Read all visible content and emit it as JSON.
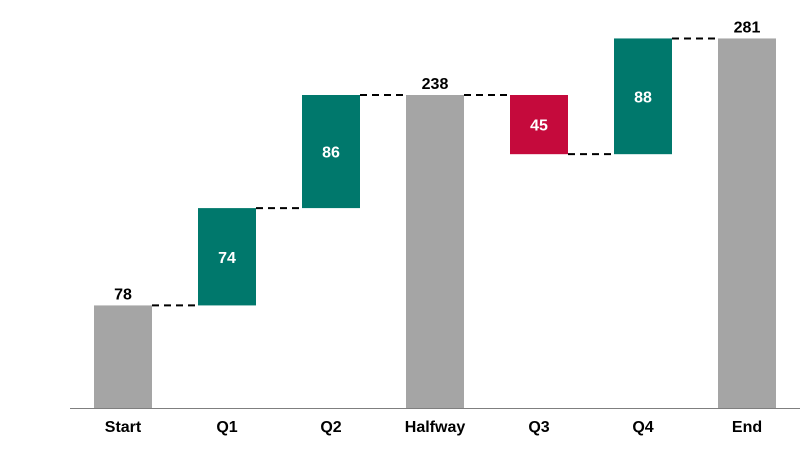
{
  "chart_data": {
    "type": "waterfall",
    "title": "",
    "xlabel": "",
    "ylabel": "",
    "ylim": [
      0,
      281
    ],
    "grid": false,
    "categories": [
      "Start",
      "Q1",
      "Q2",
      "Halfway",
      "Q3",
      "Q4",
      "End"
    ],
    "kinds": [
      "total",
      "increase",
      "increase",
      "total",
      "decrease",
      "increase",
      "total"
    ],
    "values": [
      78,
      74,
      86,
      238,
      45,
      88,
      281
    ],
    "labels": [
      "78",
      "74",
      "86",
      "238",
      "45",
      "88",
      "281"
    ],
    "colors": {
      "total": "#a5a5a5",
      "increase": "#00786c",
      "decrease": "#c50a3c",
      "connector": "#000000",
      "axis": "#7f7f7f"
    }
  }
}
